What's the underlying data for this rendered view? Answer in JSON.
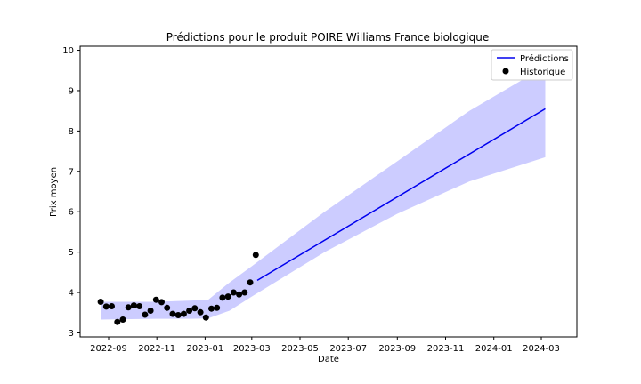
{
  "chart_data": {
    "type": "line",
    "title": "Prédictions pour le produit POIRE Williams France biologique",
    "xlabel": "Date",
    "ylabel": "Prix moyen",
    "xlim": [
      "2022-07-27",
      "2024-04-15"
    ],
    "ylim": [
      2.9,
      10.1
    ],
    "x_ticks": [
      "2022-09",
      "2022-11",
      "2023-01",
      "2023-03",
      "2023-05",
      "2023-07",
      "2023-09",
      "2023-11",
      "2024-01",
      "2024-03"
    ],
    "y_ticks": [
      3,
      4,
      5,
      6,
      7,
      8,
      9,
      10
    ],
    "legend": {
      "position": "top-right",
      "entries": [
        "Prédictions",
        "Historique"
      ]
    },
    "colors": {
      "prediction_line": "#0000ee",
      "confidence_band": "#ccccff",
      "history_points": "#000000"
    },
    "grid": false,
    "series": [
      {
        "name": "Prédictions",
        "kind": "line",
        "x": [
          "2023-03-08",
          "2024-03-06"
        ],
        "y": [
          4.3,
          8.55
        ]
      },
      {
        "kind": "band",
        "x": [
          "2022-08-22",
          "2022-11-01",
          "2022-12-15",
          "2023-01-05",
          "2023-02-01",
          "2023-03-01",
          "2023-06-01",
          "2023-09-01",
          "2023-12-01",
          "2024-03-06"
        ],
        "lower": [
          3.33,
          3.35,
          3.35,
          3.36,
          3.55,
          3.9,
          5.0,
          5.95,
          6.75,
          7.35
        ],
        "upper": [
          3.77,
          3.77,
          3.8,
          3.82,
          4.25,
          4.65,
          6.0,
          7.25,
          8.5,
          9.6
        ]
      },
      {
        "name": "Historique",
        "kind": "scatter",
        "x": [
          "2022-08-22",
          "2022-08-29",
          "2022-09-05",
          "2022-09-12",
          "2022-09-19",
          "2022-09-26",
          "2022-10-03",
          "2022-10-10",
          "2022-10-17",
          "2022-10-24",
          "2022-10-31",
          "2022-11-07",
          "2022-11-14",
          "2022-11-21",
          "2022-11-28",
          "2022-12-05",
          "2022-12-12",
          "2022-12-19",
          "2022-12-26",
          "2023-01-02",
          "2023-01-09",
          "2023-01-16",
          "2023-01-23",
          "2023-01-30",
          "2023-02-06",
          "2023-02-13",
          "2023-02-20",
          "2023-02-27",
          "2023-03-06"
        ],
        "y": [
          3.77,
          3.65,
          3.66,
          3.27,
          3.33,
          3.63,
          3.68,
          3.66,
          3.45,
          3.55,
          3.82,
          3.76,
          3.62,
          3.47,
          3.44,
          3.47,
          3.55,
          3.61,
          3.51,
          3.38,
          3.6,
          3.62,
          3.87,
          3.9,
          4.0,
          3.95,
          4.0,
          4.25,
          4.93
        ]
      }
    ]
  }
}
